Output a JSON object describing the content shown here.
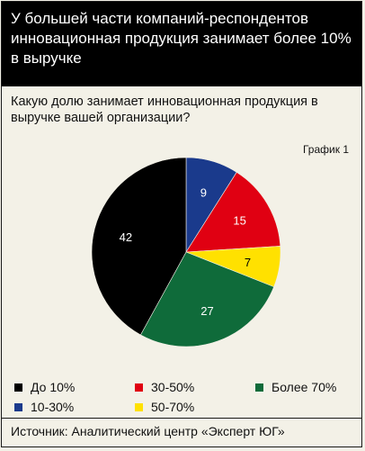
{
  "header": {
    "title": "У большей части компаний-респондентов инновационная продукция занимает более 10% в выручке"
  },
  "question": "Какую долю занимает инновационная продукция в выручке вашей организации?",
  "chart_label": "График 1",
  "source": "Источник: Аналитический центр «Эксперт ЮГ»",
  "chart_data": {
    "type": "pie",
    "title": "",
    "categories": [
      "До 10%",
      "10-30%",
      "30-50%",
      "50-70%",
      "Более 70%"
    ],
    "values": [
      42,
      9,
      15,
      7,
      27
    ],
    "colors": [
      "#000000",
      "#1a3a8c",
      "#e00012",
      "#ffe100",
      "#0f6b3a"
    ],
    "label_colors": [
      "#ffffff",
      "#ffffff",
      "#ffffff",
      "#000000",
      "#ffffff"
    ],
    "legend_position": "bottom"
  }
}
